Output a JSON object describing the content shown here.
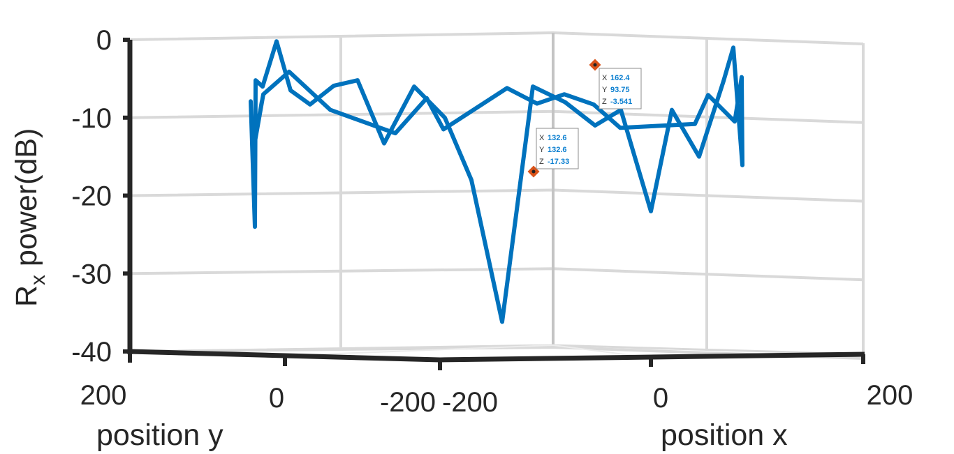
{
  "chart_data": {
    "type": "line",
    "projection": "3d",
    "zlabel": "R",
    "zlabel_subscript": "x",
    "zlabel_suffix": " power(dB)",
    "ylabel": "position y",
    "xlabel": "position x",
    "zlim": [
      -40,
      0
    ],
    "z_ticks": [
      "0",
      "-10",
      "-20",
      "-30",
      "-40"
    ],
    "y_ticks": [
      "200",
      "0",
      "-200"
    ],
    "x_ticks": [
      "-200",
      "0",
      "200"
    ],
    "grid": true,
    "colors": {
      "line": "#0072bd",
      "axis": "#262626",
      "grid": "#d9d9d9",
      "marker": "#d95319",
      "tip_value": "#0b7fd0"
    },
    "series": [
      {
        "points": [
          [
            -7.9
          ],
          [
            -24.0
          ],
          [
            -5.2
          ],
          [
            -6.0
          ],
          [
            -0.2
          ],
          [
            -6.5
          ],
          [
            -8.3
          ],
          [
            -5.9
          ],
          [
            -5.2
          ],
          [
            -13.3
          ],
          [
            -6.0
          ],
          [
            -10.0
          ],
          [
            -18.0
          ],
          [
            -36.2
          ],
          [
            -6.0
          ],
          [
            -8.0
          ],
          [
            -11.0
          ],
          [
            -9.0
          ],
          [
            -22.0
          ],
          [
            -9.0
          ],
          [
            -15.0
          ],
          [
            -5.3
          ],
          [
            -1.0
          ],
          [
            -16.1
          ],
          [
            -4.8
          ],
          [
            -10.5
          ],
          [
            -7.1
          ],
          [
            -10.8
          ],
          [
            -11.3
          ],
          [
            -8.3
          ],
          [
            -7.0
          ],
          [
            -8.2
          ],
          [
            -6.2
          ],
          [
            -11.5
          ],
          [
            -7.5
          ],
          [
            -12.0
          ],
          [
            -9.0
          ],
          [
            -4.1
          ],
          [
            -7.0
          ],
          [
            -14.6
          ],
          [
            -7.9
          ],
          [
            -12.7
          ]
        ]
      }
    ],
    "datatips": [
      {
        "x": "162.4",
        "y": "93.75",
        "z": "-3.541"
      },
      {
        "x": "132.6",
        "y": "132.6",
        "z": "-17.33"
      }
    ]
  }
}
